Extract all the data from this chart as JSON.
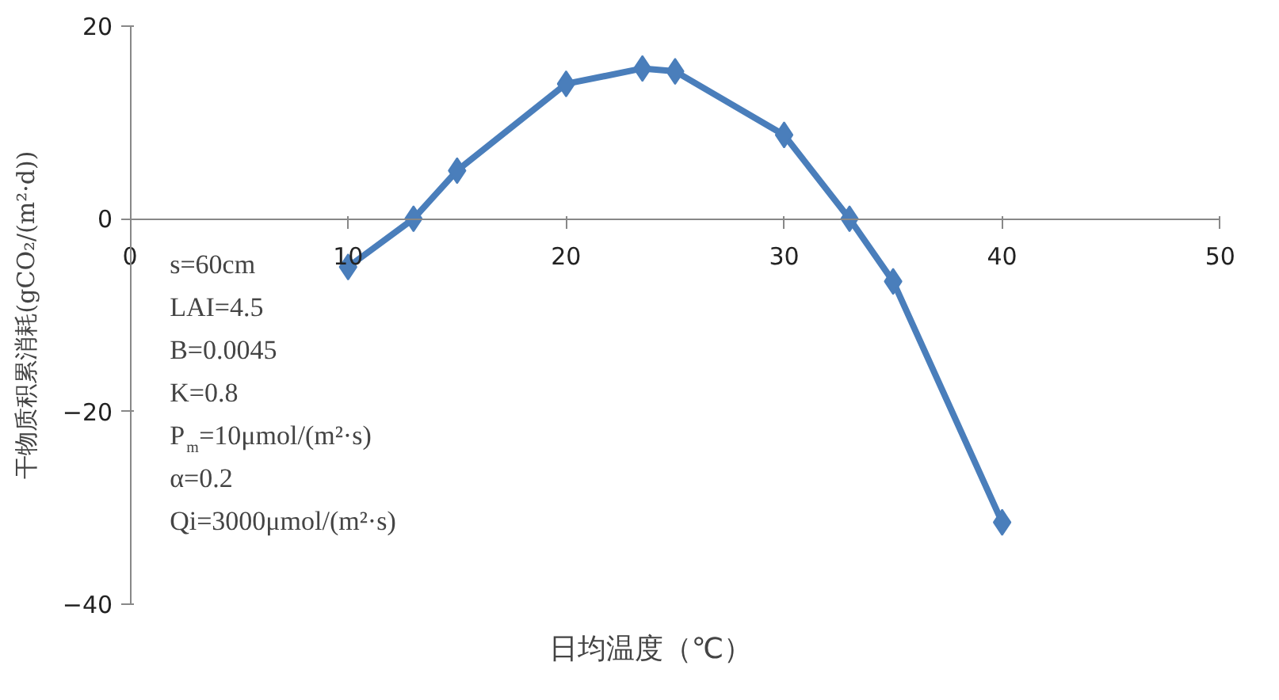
{
  "chart_data": {
    "type": "line",
    "xlabel": "日均温度（℃）",
    "ylabel": "干物质积累消耗(gCO₂/(m²·d))",
    "x": [
      10,
      13,
      15,
      20,
      23.5,
      25,
      30,
      33,
      35,
      40
    ],
    "series": [
      {
        "color": "#4a7ebb",
        "values": [
          -5,
          0,
          5,
          14,
          15.6,
          15.3,
          8.7,
          0,
          -6.5,
          -31.5
        ]
      }
    ],
    "xlim": [
      0,
      50
    ],
    "ylim": [
      -40,
      20
    ],
    "xticks": [
      0,
      10,
      20,
      30,
      40,
      50
    ],
    "yticks": [
      -40,
      -20,
      0,
      20
    ],
    "marker": "diamond",
    "line_style": "solid",
    "grid": false,
    "annotations": [
      "s=60cm",
      "LAI=4.5",
      "B=0.0045",
      "K=0.8",
      "P$_{m}$=10μmol/(m²·s)",
      "α=0.2",
      "Qi=3000μmol/(m²·s)"
    ]
  }
}
